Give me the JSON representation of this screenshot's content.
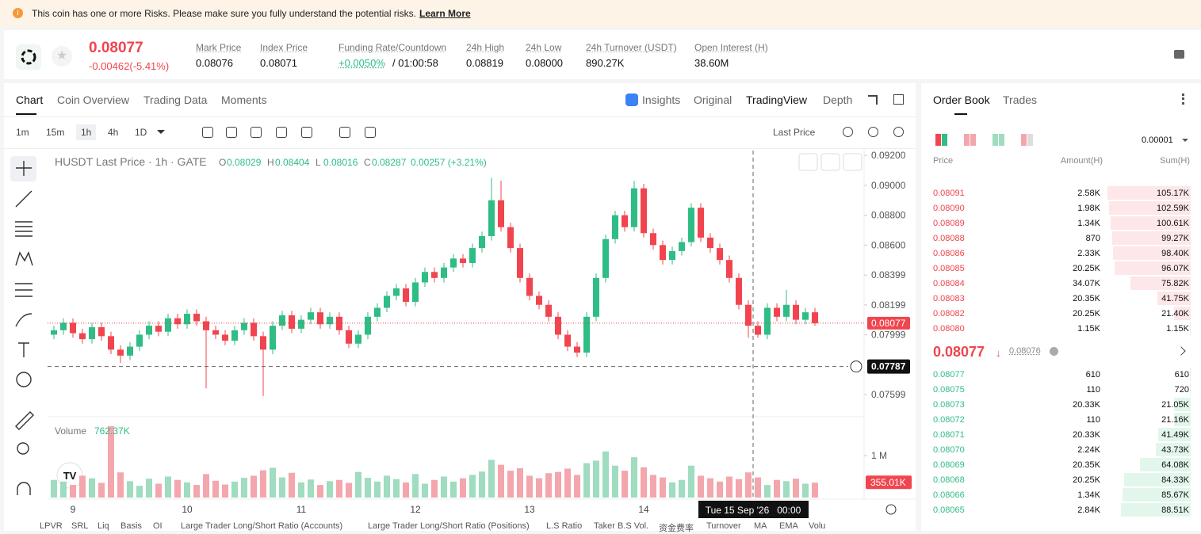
{
  "banner": {
    "text": "This coin has one or more Risks. Please make sure you fully understand the potential risks.",
    "link": "Learn More"
  },
  "header": {
    "price": "0.08077",
    "change": "-0.00462(-5.41%)",
    "stats": [
      {
        "label": "Mark Price",
        "value": "0.08076"
      },
      {
        "label": "Index Price",
        "value": "0.08071"
      },
      {
        "label": "Funding Rate/Countdown",
        "value": "+0.0050%",
        "extra": "/ 01:00:58"
      },
      {
        "label": "24h High",
        "value": "0.08819"
      },
      {
        "label": "24h Low",
        "value": "0.08000"
      },
      {
        "label": "24h Turnover (USDT)",
        "value": "890.27K"
      },
      {
        "label": "Open Interest (H)",
        "value": "38.60M"
      }
    ]
  },
  "tabs": [
    "Chart",
    "Coin Overview",
    "Trading Data",
    "Moments"
  ],
  "views": [
    "Insights",
    "Original",
    "TradingView",
    "Depth"
  ],
  "intervals": [
    "1m",
    "15m",
    "1h",
    "4h",
    "1D"
  ],
  "price_type": "Last Price",
  "chart_data": {
    "type": "candlestick",
    "title": "HUSDT Last Price · 1h · GATE",
    "legend": [
      {
        "key": "O",
        "value": "0.08029"
      },
      {
        "key": "H",
        "value": "0.08404"
      },
      {
        "key": "L",
        "value": "0.08016"
      },
      {
        "key": "C",
        "value": "0.08287"
      }
    ],
    "legend_change": "0.00257 (+3.21%)",
    "categories": [
      null,
      null,
      "9",
      null,
      null,
      null,
      null,
      null,
      null,
      null,
      null,
      null,
      null,
      null,
      "10",
      null,
      null,
      null,
      null,
      null,
      null,
      null,
      null,
      null,
      null,
      null,
      "11",
      null,
      null,
      null,
      null,
      null,
      null,
      null,
      null,
      null,
      null,
      null,
      "12",
      null,
      null,
      null,
      null,
      null,
      null,
      null,
      null,
      null,
      null,
      null,
      "13",
      null,
      null,
      null,
      null,
      null,
      null,
      null,
      null,
      null,
      null,
      null,
      "14",
      null,
      null,
      null,
      null,
      null,
      null,
      null,
      null,
      null,
      null,
      null,
      null,
      null,
      null,
      null,
      null,
      null,
      null
    ],
    "open": [
      0.08,
      0.0803,
      0.0808,
      0.0801,
      0.0797,
      0.0805,
      0.0799,
      0.079,
      0.0786,
      0.0792,
      0.08,
      0.0806,
      0.0802,
      0.0811,
      0.0807,
      0.0814,
      0.0809,
      0.0803,
      0.08,
      0.0796,
      0.0803,
      0.0808,
      0.0799,
      0.079,
      0.0806,
      0.0813,
      0.0804,
      0.081,
      0.0815,
      0.0807,
      0.0812,
      0.0803,
      0.0794,
      0.08,
      0.0812,
      0.0818,
      0.0826,
      0.0831,
      0.0822,
      0.0835,
      0.0842,
      0.0838,
      0.0845,
      0.0851,
      0.0848,
      0.0858,
      0.0866,
      0.089,
      0.0872,
      0.0858,
      0.0838,
      0.0826,
      0.082,
      0.0812,
      0.08,
      0.0792,
      0.0788,
      0.0812,
      0.0838,
      0.0864,
      0.088,
      0.0872,
      0.0898,
      0.0868,
      0.086,
      0.085,
      0.0856,
      0.0862,
      0.0885,
      0.0865,
      0.0858,
      0.085,
      0.0838,
      0.082,
      0.0806,
      0.08,
      0.0818,
      0.0812,
      0.082,
      0.081,
      0.0815
    ],
    "high": [
      0.0806,
      0.0811,
      0.0811,
      0.0804,
      0.0808,
      0.0808,
      0.0802,
      0.0793,
      0.0795,
      0.0803,
      0.0809,
      0.0809,
      0.0814,
      0.0814,
      0.0817,
      0.0817,
      0.0812,
      0.0806,
      0.0803,
      0.0806,
      0.0811,
      0.0811,
      0.0802,
      0.0809,
      0.0816,
      0.0816,
      0.0813,
      0.0818,
      0.0818,
      0.0815,
      0.0815,
      0.0806,
      0.0803,
      0.0815,
      0.0821,
      0.0829,
      0.0834,
      0.0834,
      0.0838,
      0.0845,
      0.0845,
      0.0848,
      0.0854,
      0.0854,
      0.0861,
      0.0869,
      0.0905,
      0.0903,
      0.0875,
      0.0861,
      0.0841,
      0.0829,
      0.0823,
      0.0815,
      0.0803,
      0.0795,
      0.0815,
      0.0841,
      0.0867,
      0.0883,
      0.0883,
      0.0903,
      0.0901,
      0.0871,
      0.0863,
      0.0859,
      0.0865,
      0.0888,
      0.0888,
      0.0868,
      0.0861,
      0.0853,
      0.0841,
      0.0823,
      0.0809,
      0.0821,
      0.0821,
      0.083,
      0.0823,
      0.0818,
      0.0818
    ],
    "low": [
      0.0797,
      0.08,
      0.0798,
      0.0794,
      0.0794,
      0.0796,
      0.0787,
      0.0781,
      0.0783,
      0.0789,
      0.0797,
      0.0799,
      0.0799,
      0.0804,
      0.0804,
      0.0806,
      0.0764,
      0.0797,
      0.0793,
      0.0793,
      0.08,
      0.0796,
      0.0759,
      0.0787,
      0.0803,
      0.0801,
      0.0801,
      0.0807,
      0.0804,
      0.0804,
      0.08,
      0.0791,
      0.0791,
      0.0797,
      0.0809,
      0.0815,
      0.0823,
      0.0819,
      0.0819,
      0.0832,
      0.0835,
      0.0835,
      0.0842,
      0.0845,
      0.0845,
      0.0855,
      0.0863,
      0.0869,
      0.0855,
      0.0835,
      0.0823,
      0.0817,
      0.0809,
      0.0797,
      0.0789,
      0.0785,
      0.0785,
      0.0809,
      0.0835,
      0.0861,
      0.0869,
      0.0869,
      0.0865,
      0.0857,
      0.0847,
      0.0847,
      0.0853,
      0.0859,
      0.0862,
      0.0855,
      0.0847,
      0.0835,
      0.0817,
      0.0798,
      0.0798,
      0.0797,
      0.0809,
      0.0809,
      0.0807,
      0.0807,
      0.0806
    ],
    "close": [
      0.0803,
      0.0808,
      0.0801,
      0.0797,
      0.0805,
      0.0799,
      0.079,
      0.0786,
      0.0792,
      0.08,
      0.0806,
      0.0802,
      0.0811,
      0.0807,
      0.0814,
      0.0809,
      0.0803,
      0.08,
      0.0796,
      0.0803,
      0.0808,
      0.0799,
      0.079,
      0.0806,
      0.0813,
      0.0804,
      0.081,
      0.0815,
      0.0807,
      0.0812,
      0.0803,
      0.0794,
      0.08,
      0.0812,
      0.0818,
      0.0826,
      0.0831,
      0.0822,
      0.0835,
      0.0842,
      0.0838,
      0.0845,
      0.0851,
      0.0848,
      0.0858,
      0.0866,
      0.089,
      0.0872,
      0.0858,
      0.0838,
      0.0826,
      0.082,
      0.0812,
      0.08,
      0.0792,
      0.0788,
      0.0812,
      0.0838,
      0.0864,
      0.088,
      0.0872,
      0.0898,
      0.0868,
      0.086,
      0.085,
      0.0856,
      0.0862,
      0.0885,
      0.0865,
      0.0858,
      0.085,
      0.0838,
      0.082,
      0.0806,
      0.08,
      0.0818,
      0.0812,
      0.082,
      0.081,
      0.0815,
      0.08077
    ],
    "volume": [
      420000,
      380000,
      300000,
      520000,
      460000,
      350000,
      1700000,
      600000,
      390000,
      280000,
      450000,
      330000,
      500000,
      420000,
      360000,
      300000,
      560000,
      400000,
      310000,
      380000,
      470000,
      520000,
      650000,
      710000,
      480000,
      590000,
      360000,
      430000,
      300000,
      390000,
      420000,
      350000,
      610000,
      470000,
      380000,
      520000,
      440000,
      360000,
      560000,
      330000,
      420000,
      500000,
      380000,
      460000,
      540000,
      620000,
      900000,
      780000,
      640000,
      700000,
      520000,
      460000,
      580000,
      610000,
      690000,
      540000,
      820000,
      880000,
      1100000,
      760000,
      640000,
      960000,
      720000,
      540000,
      480000,
      360000,
      420000,
      760000,
      520000,
      460000,
      380000,
      500000,
      440000,
      600000,
      480000,
      300000,
      420000,
      390000,
      450000,
      330000,
      355010
    ],
    "volume_value_labels_last": "355.01K",
    "ylim": [
      0.07456,
      0.09233
    ],
    "yticks": [
      {
        "value": 0.092,
        "label": "0.09200"
      },
      {
        "value": 0.09,
        "label": "0.09000"
      },
      {
        "value": 0.088,
        "label": "0.08800"
      },
      {
        "value": 0.086,
        "label": "0.08600"
      },
      0.08399,
      0.08199,
      0.07999,
      0.07599
    ],
    "volume_title": "Volume",
    "volume_legend": "762.37K",
    "y2lim": [
      0,
      1850000
    ],
    "y2ticks": [
      {
        "value": 1000000,
        "label": "1 M"
      }
    ],
    "last_price": 0.08077,
    "crosshair": {
      "price": 0.07787,
      "time": "Tue 15 Sep '26   00:00"
    },
    "grid": false,
    "up_color": "#2ebd85",
    "down_color": "#f0454f"
  },
  "indicators": [
    "LPVR",
    "SRL",
    "Liq",
    "Basis",
    "OI",
    "Large Trader Long/Short Ratio (Accounts)",
    "Large Trader Long/Short Ratio (Positions)",
    "L.S Ratio",
    "Taker B.S Vol.",
    "资金费率",
    "Turnover",
    "MA",
    "EMA",
    "Volu"
  ],
  "order_book": {
    "tabs": [
      "Order Book",
      "Trades"
    ],
    "precision": "0.00001",
    "columns": [
      "Price",
      "Amount(H)",
      "Sum(H)"
    ],
    "asks": [
      [
        "0.08091",
        "2.58K",
        "105.17K"
      ],
      [
        "0.08090",
        "1.98K",
        "102.59K"
      ],
      [
        "0.08089",
        "1.34K",
        "100.61K"
      ],
      [
        "0.08088",
        "870",
        "99.27K"
      ],
      [
        "0.08086",
        "2.33K",
        "98.40K"
      ],
      [
        "0.08085",
        "20.25K",
        "96.07K"
      ],
      [
        "0.08084",
        "34.07K",
        "75.82K"
      ],
      [
        "0.08083",
        "20.35K",
        "41.75K"
      ],
      [
        "0.08082",
        "20.25K",
        "21.40K"
      ],
      [
        "0.08080",
        "1.15K",
        "1.15K"
      ]
    ],
    "last": "0.08077",
    "mark": "0.08076",
    "bids": [
      [
        "0.08077",
        "610",
        "610"
      ],
      [
        "0.08075",
        "110",
        "720"
      ],
      [
        "0.08073",
        "20.33K",
        "21.05K"
      ],
      [
        "0.08072",
        "110",
        "21.16K"
      ],
      [
        "0.08071",
        "20.33K",
        "41.49K"
      ],
      [
        "0.08070",
        "2.24K",
        "43.73K"
      ],
      [
        "0.08069",
        "20.35K",
        "64.08K"
      ],
      [
        "0.08068",
        "20.25K",
        "84.33K"
      ],
      [
        "0.08066",
        "1.34K",
        "85.67K"
      ],
      [
        "0.08065",
        "2.84K",
        "88.51K"
      ]
    ]
  }
}
